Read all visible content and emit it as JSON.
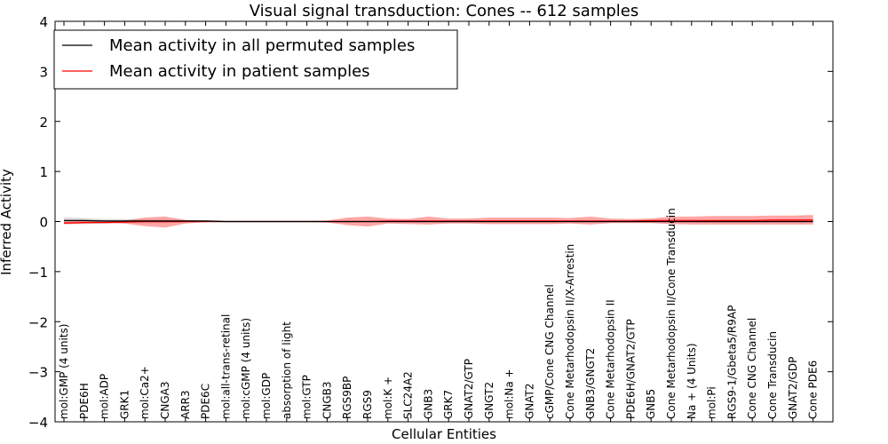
{
  "chart_data": {
    "type": "line",
    "title": "Visual signal transduction: Cones -- 612 samples",
    "xlabel": "Cellular Entities",
    "ylabel": "Inferred Activity",
    "ylim": [
      -4,
      4
    ],
    "yticks": [
      4,
      3,
      2,
      1,
      0,
      -1,
      -2,
      -3,
      -4
    ],
    "ytick_labels": [
      "4",
      "3",
      "2",
      "1",
      "0",
      "−1",
      "−2",
      "−3",
      "−4"
    ],
    "legend": {
      "position": "top-left",
      "entries": [
        {
          "label": "Mean activity in all permuted samples",
          "color": "#000000"
        },
        {
          "label": "Mean activity in patient samples",
          "color": "#ff0000"
        }
      ]
    },
    "categories": [
      "mol:GMP (4 units)",
      "PDE6H",
      "mol:ADP",
      "GRK1",
      "mol:Ca2+",
      "CNGA3",
      "ARR3",
      "PDE6C",
      "mol:all-trans-retinal",
      "mol:cGMP (4 units)",
      "mol:GDP",
      "absorption of light",
      "mol:GTP",
      "CNGB3",
      "RGS9BP",
      "RGS9",
      "mol:K +",
      "SLC24A2",
      "GNB3",
      "GRK7",
      "GNAT2/GTP",
      "GNGT2",
      "mol:Na +",
      "GNAT2",
      "cGMP/Cone CNG Channel",
      "Cone Metarhodopsin II/X-Arrestin",
      "GNB3/GNGT2",
      "Cone Metarhodopsin II",
      "PDE6H/GNAT2/GTP",
      "GNB5",
      "Cone Metarhodopsin II/Cone Transducin",
      "Na + (4 Units)",
      "mol:Pi",
      "RGS9-1/Gbeta5/R9AP",
      "Cone CNG Channel",
      "Cone Transducin",
      "GNAT2/GDP",
      "Cone PDE6"
    ],
    "series": [
      {
        "name": "Mean activity in all permuted samples",
        "color": "#000000",
        "values": [
          0.02,
          0.02,
          0.01,
          0.01,
          0.01,
          0.01,
          0.01,
          0.01,
          0.0,
          0.0,
          0.0,
          0.0,
          0.0,
          0.0,
          0.0,
          0.0,
          0.0,
          0.0,
          0.0,
          0.0,
          0.0,
          0.0,
          0.0,
          0.0,
          0.0,
          0.0,
          0.0,
          0.0,
          0.0,
          0.0,
          0.0,
          0.0,
          0.0,
          0.0,
          0.0,
          0.0,
          0.0,
          0.0
        ],
        "band_upper": [
          0.08,
          0.07,
          0.05,
          0.05,
          0.04,
          0.04,
          0.03,
          0.03,
          0.02,
          0.02,
          0.02,
          0.02,
          0.02,
          0.02,
          0.02,
          0.02,
          0.02,
          0.02,
          0.02,
          0.02,
          0.02,
          0.02,
          0.02,
          0.02,
          0.02,
          0.02,
          0.02,
          0.02,
          0.02,
          0.02,
          0.02,
          0.02,
          0.02,
          0.02,
          0.02,
          0.02,
          0.02,
          0.02
        ],
        "band_lower": [
          -0.05,
          -0.05,
          -0.04,
          -0.03,
          -0.03,
          -0.03,
          -0.02,
          -0.02,
          -0.02,
          -0.02,
          -0.02,
          -0.02,
          -0.02,
          -0.02,
          -0.02,
          -0.02,
          -0.02,
          -0.02,
          -0.02,
          -0.02,
          -0.02,
          -0.02,
          -0.02,
          -0.02,
          -0.02,
          -0.02,
          -0.02,
          -0.02,
          -0.02,
          -0.02,
          -0.02,
          -0.02,
          -0.02,
          -0.02,
          -0.02,
          -0.02,
          -0.02,
          -0.02
        ]
      },
      {
        "name": "Mean activity in patient samples",
        "color": "#ff0000",
        "values": [
          -0.03,
          -0.02,
          -0.02,
          -0.01,
          0.0,
          0.0,
          0.0,
          0.0,
          0.0,
          0.0,
          0.0,
          0.0,
          0.0,
          0.0,
          0.0,
          0.0,
          0.01,
          0.01,
          0.01,
          0.01,
          0.01,
          0.01,
          0.01,
          0.01,
          0.01,
          0.01,
          0.01,
          0.01,
          0.01,
          0.02,
          0.02,
          0.02,
          0.02,
          0.02,
          0.02,
          0.03,
          0.03,
          0.03
        ],
        "band_upper": [
          0.0,
          0.01,
          0.01,
          0.02,
          0.08,
          0.1,
          0.03,
          0.01,
          0.0,
          0.0,
          0.0,
          0.0,
          0.0,
          0.02,
          0.08,
          0.1,
          0.06,
          0.05,
          0.1,
          0.06,
          0.06,
          0.08,
          0.08,
          0.08,
          0.08,
          0.07,
          0.1,
          0.06,
          0.05,
          0.06,
          0.1,
          0.1,
          0.11,
          0.11,
          0.11,
          0.12,
          0.12,
          0.13
        ],
        "band_lower": [
          -0.05,
          -0.04,
          -0.03,
          -0.04,
          -0.09,
          -0.12,
          -0.04,
          -0.01,
          0.0,
          0.0,
          0.0,
          0.0,
          0.0,
          -0.02,
          -0.07,
          -0.1,
          -0.04,
          -0.05,
          -0.06,
          -0.04,
          -0.04,
          -0.05,
          -0.05,
          -0.05,
          -0.05,
          -0.04,
          -0.06,
          -0.03,
          -0.03,
          -0.03,
          -0.05,
          -0.06,
          -0.06,
          -0.06,
          -0.06,
          -0.06,
          -0.06,
          -0.06
        ]
      }
    ]
  }
}
